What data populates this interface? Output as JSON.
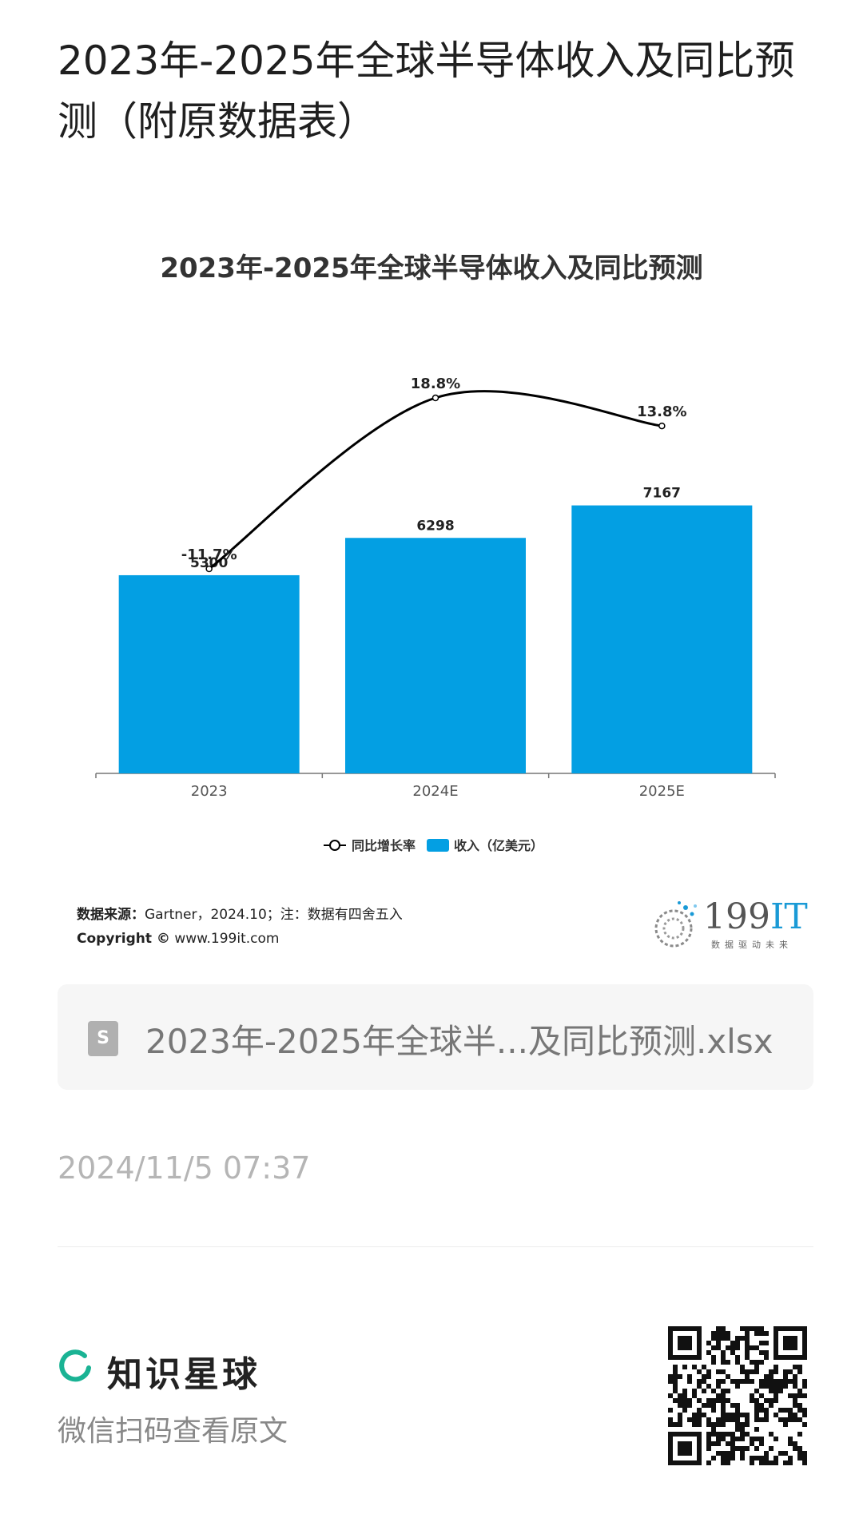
{
  "page": {
    "title": "2023年-2025年全球半导体收入及同比预测（附原数据表）"
  },
  "chart_data": {
    "type": "bar",
    "title": "2023年-2025年全球半导体收入及同比预测",
    "categories": [
      "2023",
      "2024E",
      "2025E"
    ],
    "series": [
      {
        "name": "收入（亿美元）",
        "type": "bar",
        "values": [
          5300,
          6298,
          7167
        ],
        "labels": [
          "5300",
          "6298",
          "7167"
        ],
        "color": "#039fe3"
      },
      {
        "name": "同比增长率",
        "type": "line",
        "values": [
          -11.7,
          18.8,
          13.8
        ],
        "labels": [
          "-11.7%",
          "18.8%",
          "13.8%"
        ],
        "color": "#000000"
      }
    ],
    "legend_position": "bottom",
    "grid": false
  },
  "source": {
    "label": "数据来源：",
    "text": "Gartner，2024.10；注：数据有四舍五入",
    "copyright_label": "Copyright ©",
    "copyright_text": " www.199it.com"
  },
  "logo": {
    "number": "199",
    "suffix": "IT",
    "tagline": "数据驱动未来"
  },
  "file": {
    "icon": "S",
    "name": "2023年-2025年全球半...及同比预测.xlsx"
  },
  "timestamp": "2024/11/5 07:37",
  "footer": {
    "brand_name": "知识星球",
    "scan_hint": "微信扫码查看原文",
    "brand_color": "#1ab394"
  }
}
